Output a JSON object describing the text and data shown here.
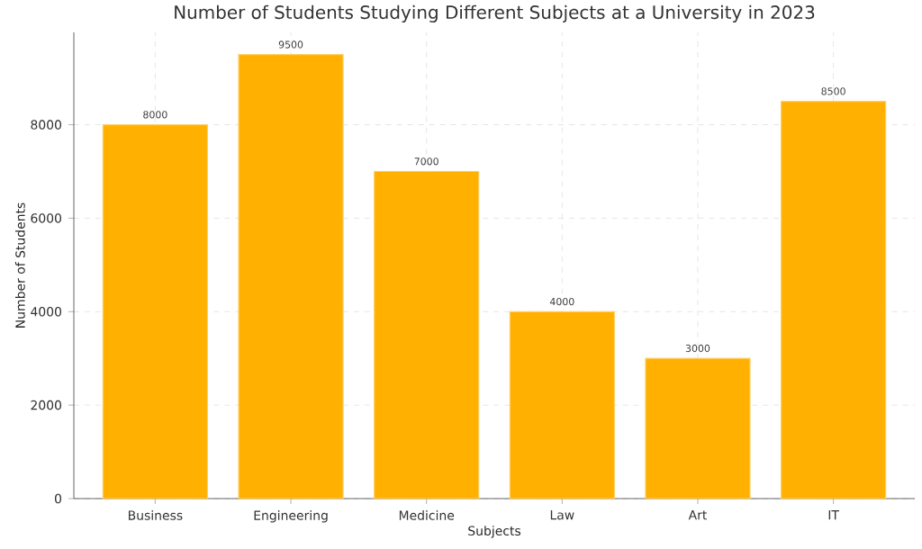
{
  "chart_data": {
    "type": "bar",
    "title": "Number of Students Studying Different Subjects at a University in 2023",
    "xlabel": "Subjects",
    "ylabel": "Number of Students",
    "categories": [
      "Business",
      "Engineering",
      "Medicine",
      "Law",
      "Art",
      "IT"
    ],
    "values": [
      8000,
      9500,
      7000,
      4000,
      3000,
      8500
    ],
    "color": "#ffb000",
    "ylim": [
      0,
      9975
    ],
    "yticks": [
      0,
      2000,
      4000,
      6000,
      8000
    ],
    "grid": true,
    "data_labels": true
  }
}
